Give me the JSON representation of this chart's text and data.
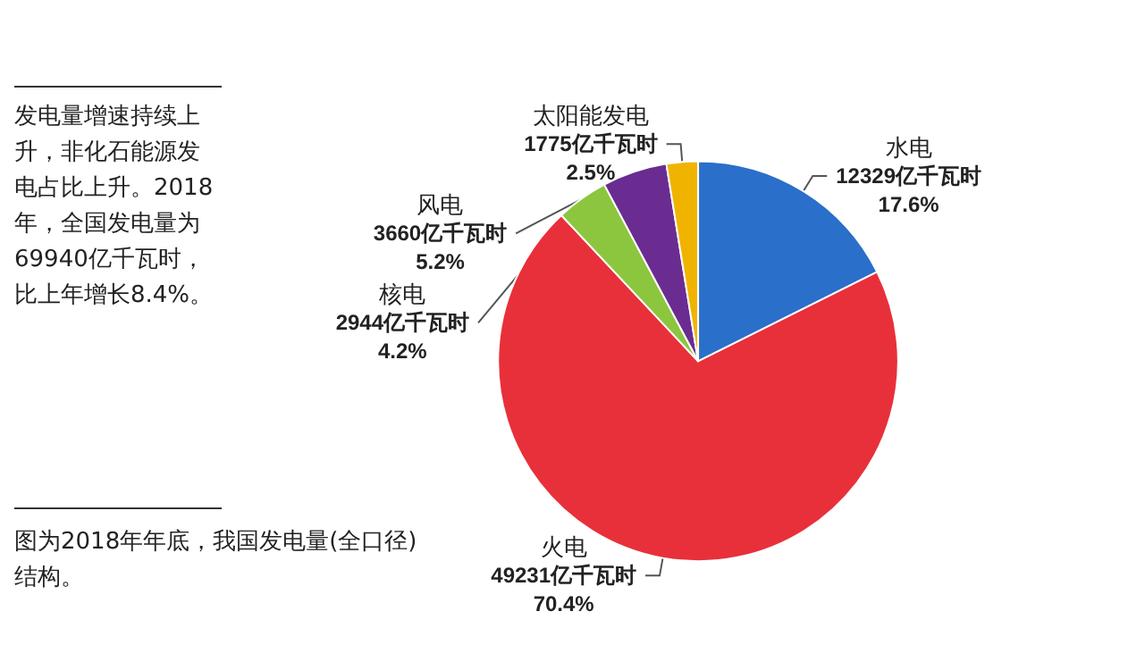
{
  "chart_data": {
    "type": "pie",
    "categories": [
      "水电",
      "火电",
      "核电",
      "风电",
      "太阳能发电"
    ],
    "values": [
      12329,
      49231,
      2944,
      3660,
      1775
    ],
    "colors": [
      "#2a6fc9",
      "#e8303a",
      "#8cc63e",
      "#6a2c91",
      "#f0b400"
    ],
    "value_labels": [
      "12329亿千瓦时\n17.6%",
      "49231亿千瓦时\n70.4%",
      "2944亿千瓦时\n4.2%",
      "3660亿千瓦时\n5.2%",
      "1775亿千瓦时\n2.5%"
    ],
    "annotations": [
      "发电量增速持续上升，非化石能源发电占比上升。2018年，全国发电量为69940亿千瓦时，比上年增长8.4%。",
      "图为2018年年底，我国发电量(全口径)结构。"
    ],
    "legend": false
  }
}
